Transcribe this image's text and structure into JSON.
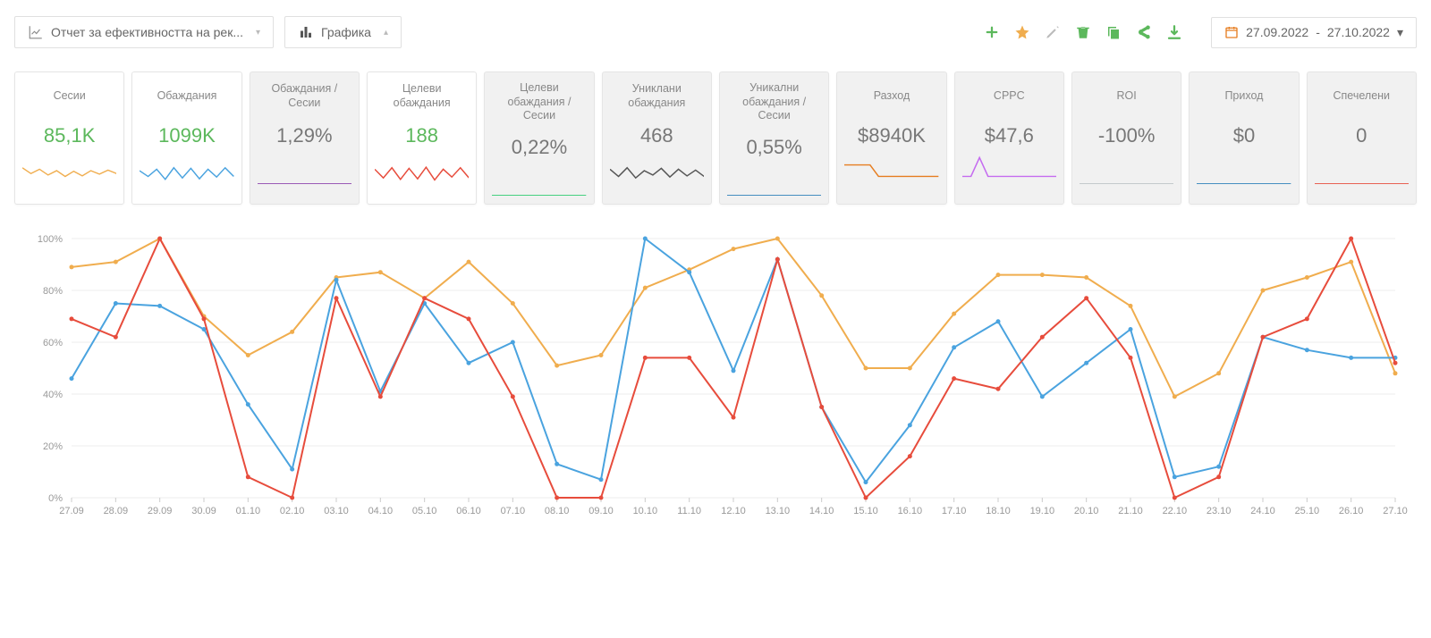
{
  "toolbar": {
    "report_label": "Отчет за ефективността на рек...",
    "view_label": "Графика",
    "date_from": "27.09.2022",
    "date_to": "27.10.2022"
  },
  "icons": {
    "add_color": "#5cb85c",
    "star_color": "#f0ad4e",
    "edit_color": "#bbbbbb",
    "trash_color": "#5cb85c",
    "copy_color": "#5cb85c",
    "share_color": "#5cb85c",
    "download_color": "#5cb85c"
  },
  "cards": [
    {
      "title": "Сесии",
      "value": "85,1K",
      "value_color": "#5cb85c",
      "dim": false,
      "spark_color": "#f0ad4e",
      "spark": [
        60,
        40,
        55,
        35,
        50,
        30,
        48,
        32,
        50,
        38,
        52,
        40
      ],
      "flat": false
    },
    {
      "title": "Обаждания",
      "value": "1099K",
      "value_color": "#5cb85c",
      "dim": false,
      "spark_color": "#4aa3df",
      "spark": [
        50,
        30,
        55,
        20,
        60,
        25,
        58,
        22,
        55,
        28,
        60,
        30
      ],
      "flat": false
    },
    {
      "title": "Обаждания / Сесии",
      "value": "1,29%",
      "value_color": "#777777",
      "dim": true,
      "spark_color": "#8e44ad",
      "spark": [
        50,
        50,
        50,
        50,
        50,
        50,
        50,
        50,
        50,
        50,
        50,
        50
      ],
      "flat": true
    },
    {
      "title": "Целеви обаждания",
      "value": "188",
      "value_color": "#5cb85c",
      "dim": false,
      "spark_color": "#e74c3c",
      "spark": [
        55,
        25,
        60,
        20,
        58,
        22,
        62,
        18,
        55,
        28,
        60,
        25
      ],
      "flat": false
    },
    {
      "title": "Целеви обаждания / Сесии",
      "value": "0,22%",
      "value_color": "#777777",
      "dim": true,
      "spark_color": "#2ecc71",
      "spark": [
        50,
        50,
        50,
        50,
        50,
        50,
        50,
        50,
        50,
        50,
        50,
        50
      ],
      "flat": true
    },
    {
      "title": "Униклани обаждания",
      "value": "468",
      "value_color": "#777777",
      "dim": true,
      "spark_color": "#555555",
      "spark": [
        55,
        30,
        60,
        25,
        50,
        35,
        58,
        28,
        55,
        32,
        52,
        30
      ],
      "flat": false
    },
    {
      "title": "Уникални обаждания / Сесии",
      "value": "0,55%",
      "value_color": "#777777",
      "dim": true,
      "spark_color": "#2c7fb8",
      "spark": [
        50,
        50,
        50,
        50,
        50,
        50,
        50,
        50,
        50,
        50,
        50,
        50
      ],
      "flat": true
    },
    {
      "title": "Разход",
      "value": "$8940K",
      "value_color": "#777777",
      "dim": true,
      "spark_color": "#e67e22",
      "spark": [
        70,
        70,
        70,
        70,
        30,
        30,
        30,
        30,
        30,
        30,
        30,
        30
      ],
      "flat": false
    },
    {
      "title": "CPPC",
      "value": "$47,6",
      "value_color": "#777777",
      "dim": true,
      "spark_color": "#c56cf0",
      "spark": [
        30,
        30,
        95,
        30,
        30,
        30,
        30,
        30,
        30,
        30,
        30,
        30
      ],
      "flat": false
    },
    {
      "title": "ROI",
      "value": "-100%",
      "value_color": "#777777",
      "dim": true,
      "spark_color": "#bdc3c7",
      "spark": [
        50,
        50,
        50,
        50,
        50,
        50,
        50,
        50,
        50,
        50,
        50,
        50
      ],
      "flat": true
    },
    {
      "title": "Приход",
      "value": "$0",
      "value_color": "#777777",
      "dim": true,
      "spark_color": "#2c7fb8",
      "spark": [
        50,
        50,
        50,
        50,
        50,
        50,
        50,
        50,
        50,
        50,
        50,
        50
      ],
      "flat": true
    },
    {
      "title": "Спечелени",
      "value": "0",
      "value_color": "#777777",
      "dim": true,
      "spark_color": "#e74c3c",
      "spark": [
        50,
        50,
        50,
        50,
        50,
        50,
        50,
        50,
        50,
        50,
        50,
        50
      ],
      "flat": true
    }
  ],
  "chart": {
    "type": "line",
    "ylim": [
      0,
      100
    ],
    "ytick_step": 20,
    "ylabel_suffix": "%",
    "grid_color": "#eeeeee",
    "axis_color": "#cccccc",
    "label_color": "#999999",
    "label_fontsize": 11,
    "background_color": "#ffffff",
    "x_labels": [
      "27.09",
      "28.09",
      "29.09",
      "30.09",
      "01.10",
      "02.10",
      "03.10",
      "04.10",
      "05.10",
      "06.10",
      "07.10",
      "08.10",
      "09.10",
      "10.10",
      "11.10",
      "12.10",
      "13.10",
      "14.10",
      "15.10",
      "16.10",
      "17.10",
      "18.10",
      "19.10",
      "20.10",
      "21.10",
      "22.10",
      "23.10",
      "24.10",
      "25.10",
      "26.10",
      "27.10"
    ],
    "series": [
      {
        "name": "yellow",
        "color": "#f0ad4e",
        "marker": true,
        "values": [
          89,
          91,
          100,
          70,
          55,
          64,
          85,
          87,
          77,
          91,
          75,
          51,
          55,
          81,
          88,
          96,
          100,
          78,
          50,
          50,
          71,
          86,
          86,
          85,
          74,
          39,
          48,
          80,
          85,
          91,
          48
        ]
      },
      {
        "name": "blue",
        "color": "#4aa3df",
        "marker": true,
        "values": [
          46,
          75,
          74,
          65,
          36,
          11,
          84,
          41,
          75,
          52,
          60,
          13,
          7,
          100,
          87,
          49,
          92,
          35,
          6,
          28,
          58,
          68,
          39,
          52,
          65,
          8,
          12,
          62,
          57,
          54,
          54
        ]
      },
      {
        "name": "red",
        "color": "#e74c3c",
        "marker": true,
        "values": [
          69,
          62,
          100,
          69,
          8,
          0,
          77,
          39,
          77,
          69,
          39,
          0,
          0,
          54,
          54,
          31,
          92,
          35,
          0,
          16,
          46,
          42,
          62,
          77,
          54,
          0,
          8,
          62,
          69,
          100,
          52
        ]
      }
    ]
  }
}
